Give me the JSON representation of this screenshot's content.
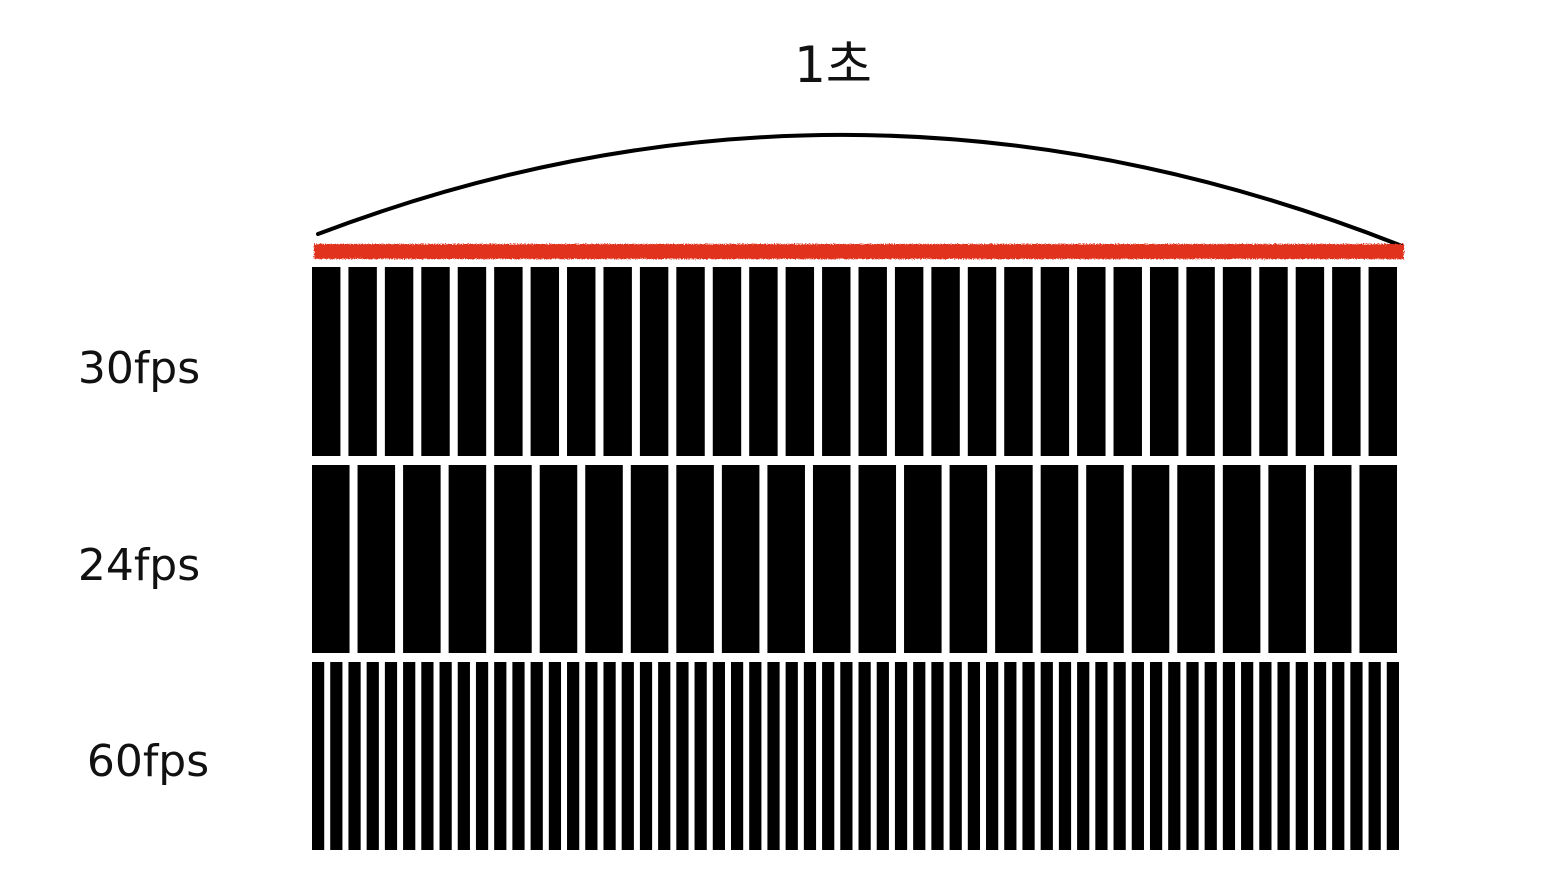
{
  "diagram": {
    "title": "1초",
    "colors": {
      "frame": "#000000",
      "second_marker": "#e0311a",
      "background": "#ffffff"
    },
    "rows": [
      {
        "label": "30fps",
        "frames": 30
      },
      {
        "label": "24fps",
        "frames": 24
      },
      {
        "label": "60fps",
        "frames": 60
      }
    ]
  }
}
